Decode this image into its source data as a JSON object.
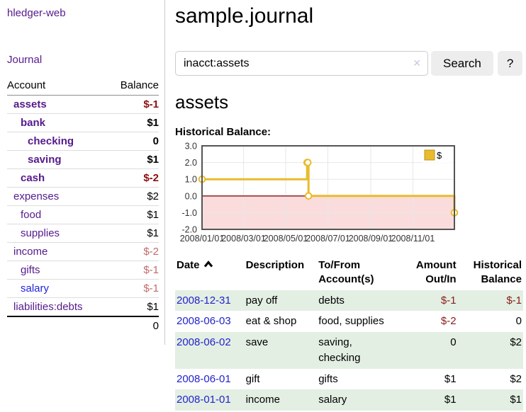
{
  "app_title": "hledger-web",
  "sidebar": {
    "journal_link": "Journal",
    "accounts": {
      "col_account": "Account",
      "col_balance": "Balance",
      "rows": [
        {
          "name": "assets",
          "balance": "$-1"
        },
        {
          "name": "bank",
          "balance": "$1"
        },
        {
          "name": "checking",
          "balance": "0"
        },
        {
          "name": "saving",
          "balance": "$1"
        },
        {
          "name": "cash",
          "balance": "$-2"
        },
        {
          "name": "expenses",
          "balance": "$2"
        },
        {
          "name": "food",
          "balance": "$1"
        },
        {
          "name": "supplies",
          "balance": "$1"
        },
        {
          "name": "income",
          "balance": "$-2"
        },
        {
          "name": "gifts",
          "balance": "$-1"
        },
        {
          "name": "salary",
          "balance": "$-1"
        },
        {
          "name": "liabilities:debts",
          "balance": "$1"
        }
      ],
      "total": "0"
    }
  },
  "main": {
    "title": "sample.journal",
    "search": {
      "value": "inacct:assets",
      "clear_icon": "✕",
      "search_button": "Search",
      "help_button": "?"
    },
    "account_heading": "assets",
    "section_label": "Historical Balance:"
  },
  "chart_data": {
    "type": "line",
    "title": "Historical Balance:",
    "series": [
      {
        "name": "$",
        "color": "#e9bb2d",
        "points": [
          {
            "date": "2008-01-01",
            "day": 0,
            "value": 1
          },
          {
            "date": "2008-06-01",
            "day": 152,
            "value": 2
          },
          {
            "date": "2008-06-02",
            "day": 153,
            "value": 2
          },
          {
            "date": "2008-06-03",
            "day": 154,
            "value": 0
          },
          {
            "date": "2008-12-31",
            "day": 365,
            "value": -1
          }
        ]
      }
    ],
    "x_range_days": [
      0,
      365
    ],
    "x_ticks": [
      {
        "day": 0,
        "label": "2008/01/01"
      },
      {
        "day": 60,
        "label": "2008/03/01"
      },
      {
        "day": 121,
        "label": "2008/05/01"
      },
      {
        "day": 182,
        "label": "2008/07/01"
      },
      {
        "day": 244,
        "label": "2008/09/01"
      },
      {
        "day": 305,
        "label": "2008/11/01"
      }
    ],
    "y_ticks": [
      -2,
      -1,
      0,
      1,
      2,
      3
    ],
    "ylim": [
      -2,
      3
    ],
    "legend": {
      "label": "$",
      "position": "top-right"
    },
    "colors": {
      "negative_region": "#fadcdc",
      "zero_line": "#8b1111",
      "grid": "#e7e7e7",
      "border": "#545454",
      "marker_fill": "#fffef5",
      "tick_text": "#333333"
    },
    "step": true
  },
  "register": {
    "headers": {
      "date": "Date",
      "description": "Description",
      "accounts": "To/From Account(s)",
      "amount": "Amount Out/In",
      "balance": "Historical Balance"
    },
    "rows": [
      {
        "date": "2008-12-31",
        "description": "pay off",
        "accounts": "debts",
        "amount": "$-1",
        "balance": "$-1"
      },
      {
        "date": "2008-06-03",
        "description": "eat & shop",
        "accounts": "food, supplies",
        "amount": "$-2",
        "balance": "0"
      },
      {
        "date": "2008-06-02",
        "description": "save",
        "accounts": "saving, checking",
        "amount": "0",
        "balance": "$2"
      },
      {
        "date": "2008-06-01",
        "description": "gift",
        "accounts": "gifts",
        "amount": "$1",
        "balance": "$2"
      },
      {
        "date": "2008-01-01",
        "description": "income",
        "accounts": "salary",
        "amount": "$1",
        "balance": "$1"
      }
    ]
  }
}
